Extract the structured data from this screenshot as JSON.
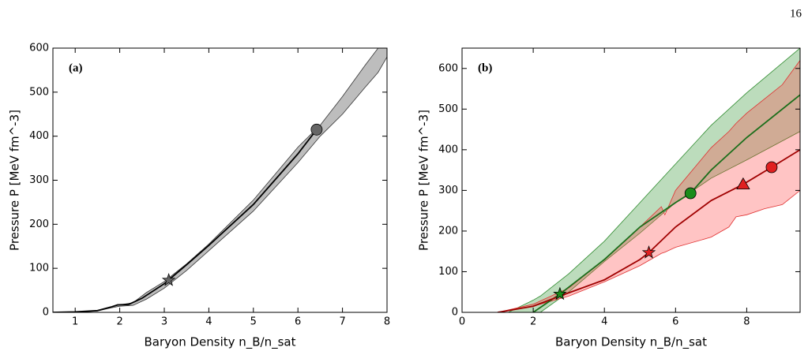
{
  "page_number": "16",
  "chart_data": [
    {
      "type": "line",
      "panel_label": "(a)",
      "xlabel": "Baryon Density n_B/n_sat",
      "ylabel": "Pressure P [MeV fm^-3]",
      "xlim": [
        0.5,
        8
      ],
      "xticks": [
        1,
        2,
        3,
        4,
        5,
        6,
        7,
        8
      ],
      "ylim": [
        0,
        600
      ],
      "yticks": [
        0,
        100,
        200,
        300,
        400,
        500,
        600
      ],
      "bands": [
        {
          "color": "#bdbdbd",
          "edge": "#333333",
          "x": [
            0.5,
            1,
            1.5,
            1.8,
            2,
            2.3,
            2.6,
            3,
            3.5,
            4,
            5,
            6,
            6.5,
            7,
            7.5,
            7.8,
            8
          ],
          "upper": [
            0,
            1,
            4,
            12,
            17,
            22,
            45,
            70,
            110,
            155,
            255,
            375,
            425,
            490,
            560,
            600,
            600
          ],
          "lower": [
            0,
            0,
            3,
            10,
            14,
            16,
            30,
            55,
            95,
            140,
            230,
            340,
            400,
            450,
            510,
            545,
            580
          ]
        }
      ],
      "series": [
        {
          "color": "#000000",
          "x": [
            0.5,
            1,
            1.5,
            1.8,
            1.95,
            2.2,
            2.5,
            3,
            3.5,
            4,
            5,
            6,
            6.42
          ],
          "values": [
            0,
            1,
            4,
            12,
            17,
            18,
            32,
            65,
            108,
            152,
            245,
            360,
            415
          ]
        }
      ],
      "markers": [
        {
          "shape": "star",
          "color": "#666666",
          "x": 3.1,
          "y": 73
        },
        {
          "shape": "circle",
          "color": "#666666",
          "x": 6.42,
          "y": 415
        }
      ]
    },
    {
      "type": "line",
      "panel_label": "(b)",
      "xlabel": "Baryon Density n_B/n_sat",
      "ylabel": "Pressure P [MeV fm^-3]",
      "xlim": [
        0,
        9.5
      ],
      "xticks": [
        0,
        2,
        4,
        6,
        8
      ],
      "ylim": [
        0,
        650
      ],
      "yticks": [
        0,
        100,
        200,
        300,
        400,
        500,
        600
      ],
      "bands": [
        {
          "color": "rgba(34,139,34,0.3)",
          "edge": "#2e8b2e",
          "x": [
            1.3,
            2,
            2.2,
            3,
            4,
            5,
            6,
            7,
            8,
            9.5
          ],
          "upper": [
            0,
            30,
            40,
            95,
            175,
            270,
            365,
            460,
            540,
            650
          ],
          "lower": [
            0,
            0,
            0,
            50,
            125,
            195,
            270,
            330,
            375,
            445
          ]
        },
        {
          "color": "rgba(255,60,60,0.3)",
          "edge": "#e03030",
          "x": [
            1,
            2,
            3,
            4,
            5,
            5.6,
            5.7,
            6,
            7,
            7.5,
            7.7,
            8,
            8.5,
            9,
            9.5
          ],
          "upper": [
            0,
            20,
            60,
            130,
            210,
            260,
            240,
            300,
            405,
            445,
            465,
            490,
            525,
            560,
            620
          ],
          "lower": [
            0,
            15,
            40,
            75,
            115,
            145,
            148,
            160,
            185,
            210,
            235,
            240,
            255,
            265,
            300
          ]
        }
      ],
      "series": [
        {
          "color": "#1a6e1a",
          "x": [
            2,
            2.75,
            4,
            5,
            6,
            6.42,
            7,
            8,
            9.5
          ],
          "values": [
            0,
            45,
            130,
            210,
            270,
            293,
            350,
            430,
            535
          ]
        },
        {
          "color": "#a00000",
          "x": [
            1,
            2,
            2.75,
            4,
            5,
            5.25,
            6,
            7,
            7.9,
            8.7,
            9.5
          ],
          "values": [
            0,
            15,
            40,
            80,
            130,
            147,
            210,
            275,
            315,
            357,
            400
          ]
        }
      ],
      "markers": [
        {
          "shape": "star",
          "color": "#1a8c1a",
          "x": 2.75,
          "y": 45
        },
        {
          "shape": "circle",
          "color": "#1a8c1a",
          "x": 6.42,
          "y": 293
        },
        {
          "shape": "star",
          "color": "#e02020",
          "x": 5.25,
          "y": 147
        },
        {
          "shape": "triangle",
          "color": "#e02020",
          "x": 7.9,
          "y": 315
        },
        {
          "shape": "circle",
          "color": "#e02020",
          "x": 8.7,
          "y": 357
        }
      ]
    }
  ]
}
